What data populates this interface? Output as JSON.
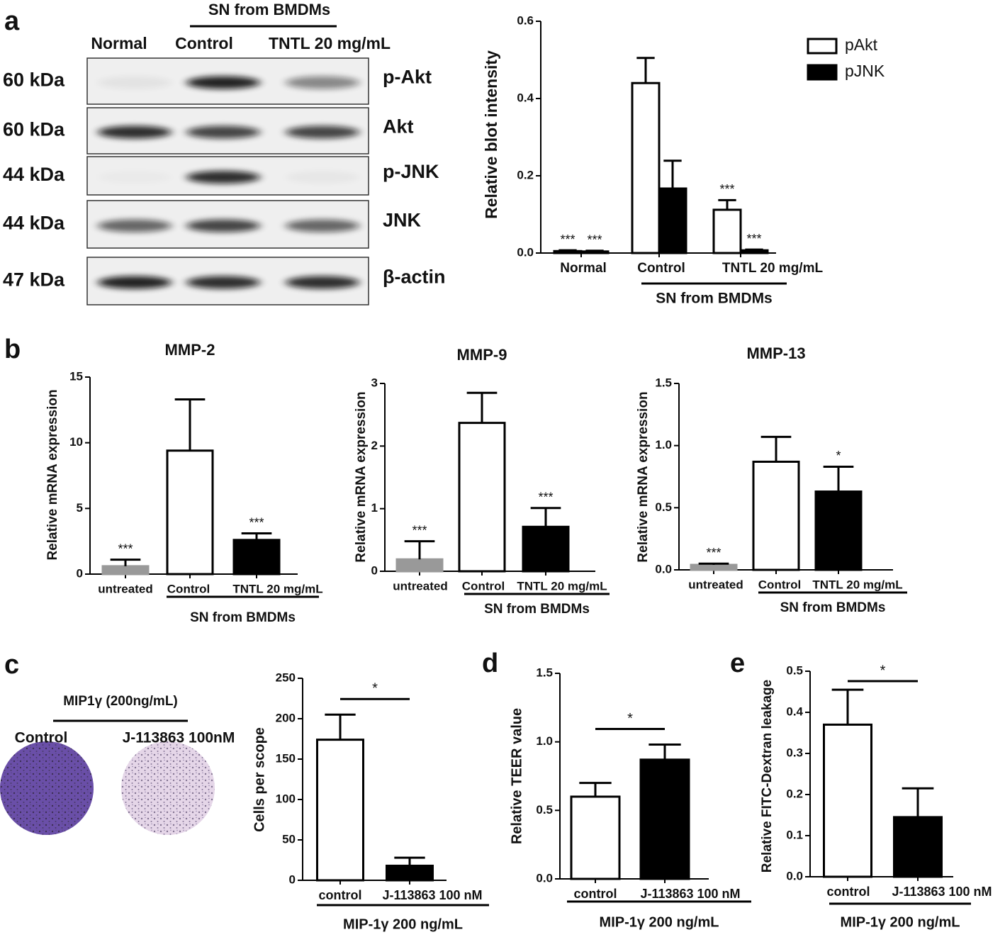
{
  "panel_labels": [
    "a",
    "b",
    "c",
    "d",
    "e"
  ],
  "blot": {
    "group_label": "SN from BMDMs",
    "lanes": [
      "Normal",
      "Control",
      "TNTL 20 mg/mL"
    ],
    "rows": [
      {
        "mw": "60 kDa",
        "protein": "p-Akt"
      },
      {
        "mw": "60 kDa",
        "protein": "Akt"
      },
      {
        "mw": "44 kDa",
        "protein": "p-JNK"
      },
      {
        "mw": "44 kDa",
        "protein": "JNK"
      },
      {
        "mw": "47 kDa",
        "protein": "β-actin"
      }
    ]
  },
  "micrograph": {
    "title": "MIP1γ (200ng/mL)",
    "groups": [
      "Control",
      "J-113863 100nM"
    ]
  },
  "chart_data": [
    {
      "type": "bar",
      "ylabel": "Relative blot intensity",
      "categories": [
        "Normal",
        "Control",
        "TNTL 20 mg/mL"
      ],
      "series": [
        {
          "name": "pAkt",
          "color": "#ffffff",
          "values": [
            0.005,
            0.44,
            0.112
          ],
          "errors": [
            0.002,
            0.065,
            0.025
          ],
          "labels": [
            "***",
            null,
            "***"
          ]
        },
        {
          "name": "pJNK",
          "color": "#000000",
          "values": [
            0.004,
            0.167,
            0.007
          ],
          "errors": [
            0.002,
            0.072,
            0.002
          ],
          "labels": [
            "***",
            null,
            "***"
          ]
        }
      ],
      "group_label": "SN from BMDMs",
      "legend": "upper right",
      "ylim": [
        0,
        0.6
      ],
      "yticks": [
        {
          "value": 0,
          "label": "0.0"
        },
        0.2,
        0.4,
        0.6
      ]
    },
    {
      "type": "bar",
      "title": "MMP-2",
      "ylabel": "Relative mRNA expression",
      "categories": [
        "untreated",
        "Control",
        "TNTL 20 mg/mL"
      ],
      "values": [
        0.6,
        9.4,
        2.6
      ],
      "errors": [
        0.5,
        3.9,
        0.5
      ],
      "colors": [
        "#999999",
        "#ffffff",
        "#000000"
      ],
      "labels": [
        "***",
        null,
        "***"
      ],
      "group_label": "SN from BMDMs",
      "ylim": [
        0,
        15
      ],
      "yticks": [
        0,
        5,
        10,
        15
      ]
    },
    {
      "type": "bar",
      "title": "MMP-9",
      "ylabel": "Relative mRNA expression",
      "categories": [
        "untreated",
        "Control",
        "TNTL 20 mg/mL"
      ],
      "values": [
        0.19,
        2.37,
        0.71
      ],
      "errors": [
        0.29,
        0.48,
        0.3
      ],
      "colors": [
        "#999999",
        "#ffffff",
        "#000000"
      ],
      "labels": [
        "***",
        null,
        "***"
      ],
      "group_label": "SN from BMDMs",
      "ylim": [
        0,
        3
      ],
      "yticks": [
        0,
        1,
        2,
        3
      ]
    },
    {
      "type": "bar",
      "title": "MMP-13",
      "ylabel": "Relative mRNA expression",
      "categories": [
        "untreated",
        "Control",
        "TNTL 20 mg/mL"
      ],
      "values": [
        0.04,
        0.87,
        0.63
      ],
      "errors": [
        0.01,
        0.2,
        0.2
      ],
      "colors": [
        "#999999",
        "#ffffff",
        "#000000"
      ],
      "labels": [
        "***",
        null,
        "*"
      ],
      "group_label": "SN from BMDMs",
      "ylim": [
        0,
        1.5
      ],
      "yticks": [
        {
          "value": 0,
          "label": "0.0"
        },
        0.5,
        {
          "value": 1,
          "label": "1.0"
        },
        1.5
      ]
    },
    {
      "type": "bar",
      "ylabel": "Cells per scope",
      "categories": [
        "control",
        "J-113863 100 nM"
      ],
      "values": [
        174,
        18
      ],
      "errors": [
        31,
        10
      ],
      "colors": [
        "#ffffff",
        "#000000"
      ],
      "comparison": "*",
      "group_label": "MIP-1γ 200 ng/mL",
      "ylim": [
        0,
        250
      ],
      "yticks": [
        0,
        50,
        100,
        150,
        200,
        250
      ]
    },
    {
      "type": "bar",
      "ylabel": "Relative TEER value",
      "categories": [
        "control",
        "J-113863 100 nM"
      ],
      "values": [
        0.6,
        0.87
      ],
      "errors": [
        0.1,
        0.11
      ],
      "colors": [
        "#ffffff",
        "#000000"
      ],
      "comparison": "*",
      "group_label": "MIP-1γ 200 ng/mL",
      "ylim": [
        0,
        1.5
      ],
      "yticks": [
        {
          "value": 0,
          "label": "0.0"
        },
        0.5,
        {
          "value": 1,
          "label": "1.0"
        },
        1.5
      ]
    },
    {
      "type": "bar",
      "ylabel": "Relative FITC-Dextran leakage",
      "categories": [
        "control",
        "J-113863 100 nM"
      ],
      "values": [
        0.37,
        0.145
      ],
      "errors": [
        0.085,
        0.07
      ],
      "colors": [
        "#ffffff",
        "#000000"
      ],
      "comparison": "*",
      "group_label": "MIP-1γ 200 ng/mL",
      "ylim": [
        0,
        0.5
      ],
      "yticks": [
        {
          "value": 0,
          "label": "0.0"
        },
        0.1,
        0.2,
        0.3,
        0.4,
        0.5
      ]
    }
  ]
}
